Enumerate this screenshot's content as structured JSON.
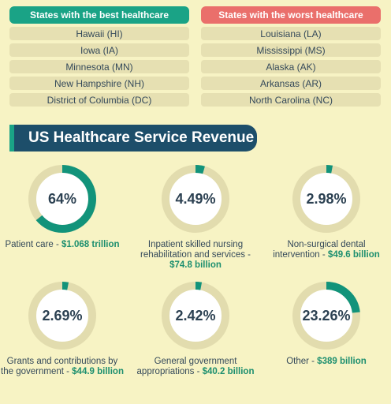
{
  "colors": {
    "best_header": "#1aa386",
    "worst_header": "#ea6f6b",
    "section_title_bg": "#1d4e6a",
    "ring_track": "#e2dcae",
    "ring_fill": "#12937a"
  },
  "best": {
    "header": "States with the best healthcare",
    "items": [
      "Hawaii (HI)",
      "Iowa (IA)",
      "Minnesota (MN)",
      "New Hampshire (NH)",
      "District of Columbia (DC)"
    ]
  },
  "worst": {
    "header": "States with the worst healthcare",
    "items": [
      "Louisiana (LA)",
      "Mississippi (MS)",
      "Alaska (AK)",
      "Arkansas (AR)",
      "North Carolina (NC)"
    ]
  },
  "section_title": "US Healthcare Service Revenue",
  "metrics": [
    {
      "pct_label": "64%",
      "value": 64,
      "text1": "Patient care - ",
      "text2": "$1.068 trillion"
    },
    {
      "pct_label": "4.49%",
      "value": 4.49,
      "text1": "Inpatient skilled nursing rehabilitation and services - ",
      "text2": "$74.8 billion"
    },
    {
      "pct_label": "2.98%",
      "value": 2.98,
      "text1": "Non-surgical dental intervention - ",
      "text2": "$49.6 billion"
    },
    {
      "pct_label": "2.69%",
      "value": 2.69,
      "text1": "Grants and contributions by the government - ",
      "text2": "$44.9 billion"
    },
    {
      "pct_label": "2.42%",
      "value": 2.42,
      "text1": "General government appropriations - ",
      "text2": "$40.2 billion"
    },
    {
      "pct_label": "23.26%",
      "value": 23.26,
      "text1": "Other - ",
      "text2": "$389 billion"
    }
  ]
}
